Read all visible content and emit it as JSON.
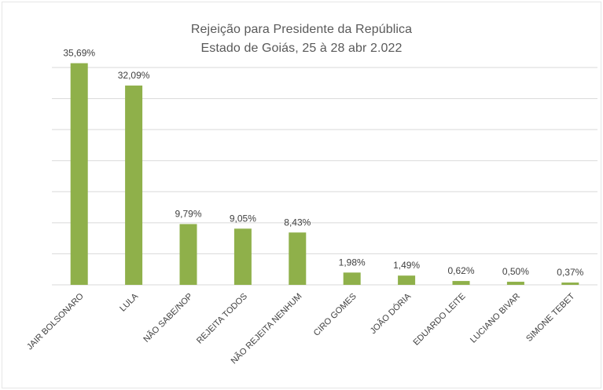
{
  "chart_data": {
    "type": "bar",
    "title": "Rejeição para Presidente da República",
    "subtitle": "Estado de Goiás, 25 à 28 abr 2.022",
    "categories": [
      "JAIR BOLSONARO",
      "LULA",
      "NÃO SABE/NOP",
      "REJEITA TODOS",
      "NÃO REJEITA NENHUM",
      "CIRO GOMES",
      "JOÃO DÓRIA",
      "EDUARDO LEITE",
      "LUCIANO BIVAR",
      "SIMONE TEBET"
    ],
    "values": [
      35.69,
      32.09,
      9.79,
      9.05,
      8.43,
      1.98,
      1.49,
      0.62,
      0.5,
      0.37
    ],
    "data_labels": [
      "35,69%",
      "32,09%",
      "9,79%",
      "9,05%",
      "8,43%",
      "1,98%",
      "1,49%",
      "0,62%",
      "0,50%",
      "0,37%"
    ],
    "xlabel": "",
    "ylabel": "",
    "ylim": [
      0,
      35
    ],
    "grid": true,
    "legend": "none",
    "colors": {
      "bar": "#8fb04a",
      "grid": "#d9d9d9",
      "text": "#404040",
      "title": "#595959"
    }
  }
}
